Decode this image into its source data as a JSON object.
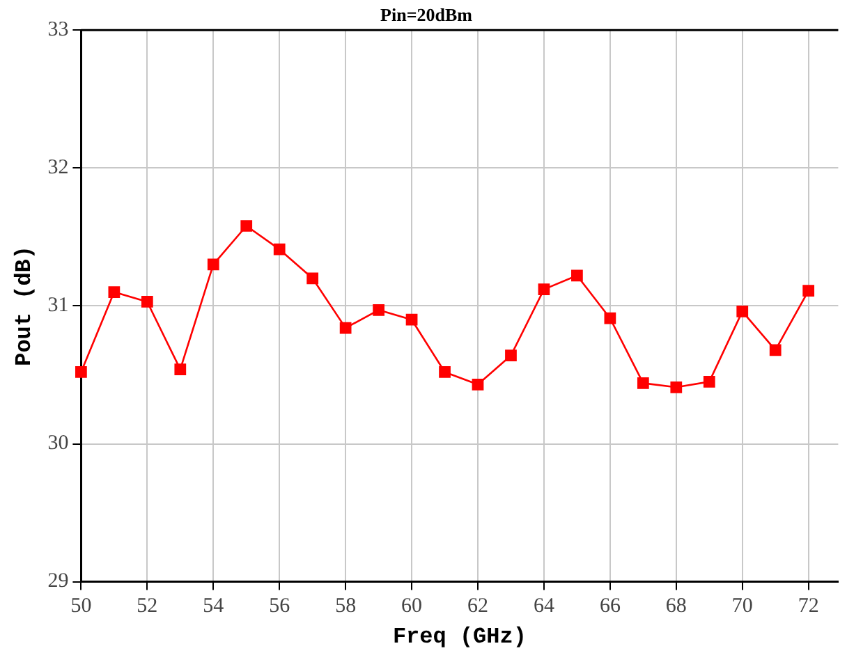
{
  "chart_data": {
    "type": "line",
    "title": "Pin=20dBm",
    "xlabel": "Freq (GHz)",
    "ylabel": "Pout (dB)",
    "x": [
      50,
      51,
      52,
      53,
      54,
      55,
      56,
      57,
      58,
      59,
      60,
      61,
      62,
      63,
      64,
      65,
      66,
      67,
      68,
      69,
      70,
      71,
      72
    ],
    "series": [
      {
        "color": "#ff0000",
        "values": [
          30.52,
          31.1,
          31.03,
          30.54,
          31.3,
          31.58,
          31.41,
          31.2,
          30.84,
          30.97,
          30.9,
          30.52,
          30.43,
          30.64,
          31.12,
          31.22,
          30.91,
          30.44,
          30.41,
          30.45,
          30.96,
          30.68,
          31.11
        ]
      }
    ],
    "xlim": [
      50,
      72.9
    ],
    "xticks": [
      50,
      52,
      54,
      56,
      58,
      60,
      62,
      64,
      66,
      68,
      70,
      72
    ],
    "ylim": [
      29,
      33
    ],
    "yticks": [
      29,
      30,
      31,
      32,
      33
    ],
    "grid": true,
    "legend": false,
    "marker": "square",
    "line_style": "solid"
  }
}
